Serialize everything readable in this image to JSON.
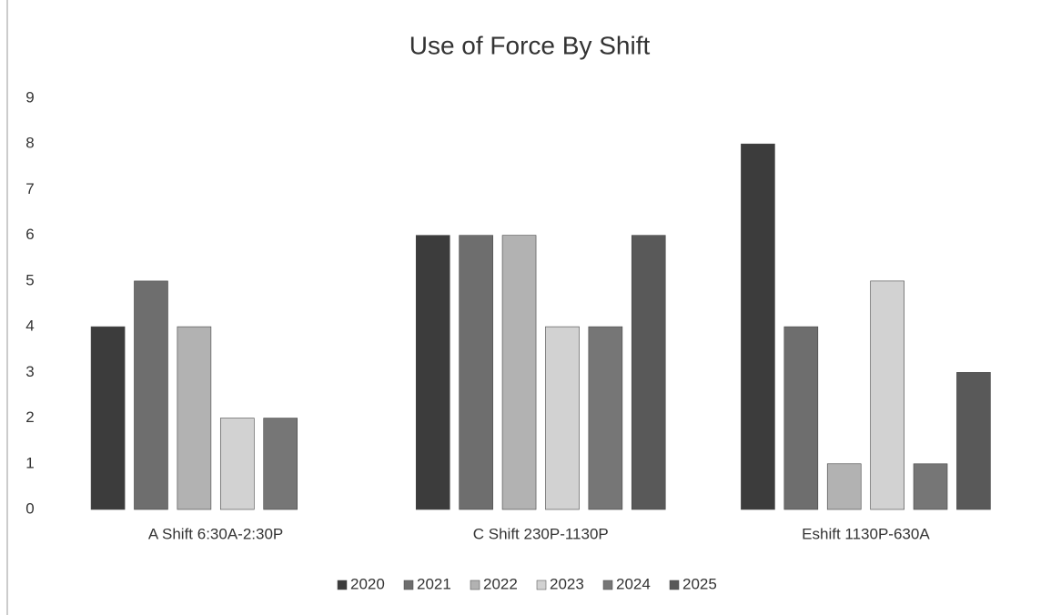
{
  "chart_data": {
    "type": "bar",
    "title": "Use of Force By Shift",
    "categories": [
      "A Shift 6:30A-2:30P",
      "C Shift 230P-1130P",
      "Eshift 1130P-630A"
    ],
    "series": [
      {
        "name": "2020",
        "color": "#3c3c3c",
        "values": [
          4,
          6,
          8
        ]
      },
      {
        "name": "2021",
        "color": "#6e6e6e",
        "values": [
          5,
          6,
          4
        ]
      },
      {
        "name": "2022",
        "color": "#b2b2b2",
        "values": [
          4,
          6,
          1
        ]
      },
      {
        "name": "2023",
        "color": "#d2d2d2",
        "values": [
          2,
          4,
          5
        ]
      },
      {
        "name": "2024",
        "color": "#767676",
        "values": [
          2,
          4,
          1
        ]
      },
      {
        "name": "2025",
        "color": "#595959",
        "values": [
          0,
          6,
          3
        ]
      }
    ],
    "ylim": [
      0,
      9
    ],
    "yticks": [
      0,
      1,
      2,
      3,
      4,
      5,
      6,
      7,
      8,
      9
    ],
    "grid": false,
    "legend": "bottom"
  }
}
